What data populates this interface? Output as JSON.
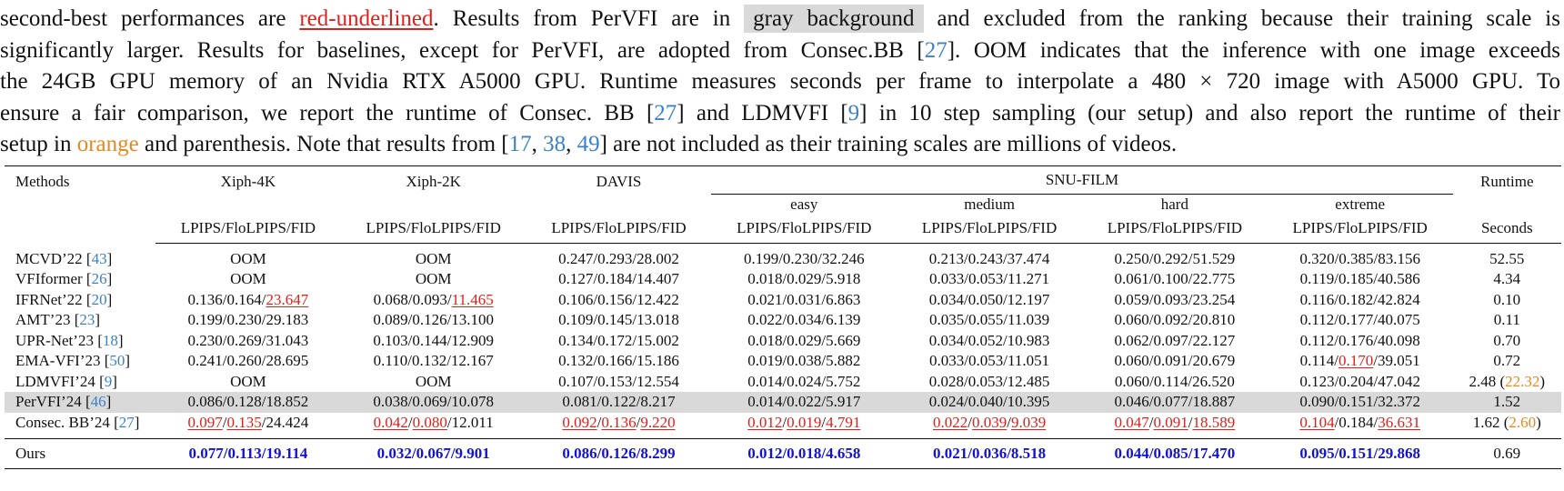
{
  "caption": {
    "l1_a": "second-best performances are ",
    "l1_red": "red-underlined",
    "l1_b": ". Results from PerVFI are in ",
    "l1_gray": "gray background",
    "l1_c": " and excluded from the ranking because their training scale is",
    "l2_a": "significantly larger. Results for baselines, except for PerVFI, are adopted from Consec.BB [",
    "l2_ref": "27",
    "l2_b": "]. OOM indicates that the inference with one image exceeds",
    "l3": "the 24GB GPU memory of an Nvidia RTX A5000 GPU. Runtime measures seconds per frame to interpolate a 480 × 720 image with A5000 GPU. To",
    "l4_a": "ensure a fair comparison, we report the runtime of Consec. BB [",
    "l4_ref1": "27",
    "l4_b": "] and LDMVFI [",
    "l4_ref2": "9",
    "l4_c": "] in 10 step sampling (our setup) and also report the runtime of their",
    "l5_a": "setup in ",
    "l5_orange": "orange",
    "l5_b": " and parenthesis. Note that results from [",
    "l5_ref1": "17",
    "l5_sep1": ", ",
    "l5_ref2": "38",
    "l5_sep2": ", ",
    "l5_ref3": "49",
    "l5_c": "] are not included as their training scales are millions of videos."
  },
  "table": {
    "methods_header": "Methods",
    "xiph4k": "Xiph-4K",
    "xiph2k": "Xiph-2K",
    "davis": "DAVIS",
    "snu": "SNU-FILM",
    "runtime": "Runtime",
    "easy": "easy",
    "medium": "medium",
    "hard": "hard",
    "extreme": "extreme",
    "metric": "LPIPS/FloLPIPS/FID",
    "seconds": "Seconds",
    "rows": [
      {
        "name": "MCVD’22 [",
        "ref": "43",
        "close": "]",
        "cells": [
          [
            {
              "t": "OOM"
            }
          ],
          [
            {
              "t": "OOM"
            }
          ],
          [
            {
              "t": "0.247/0.293/28.002"
            }
          ],
          [
            {
              "t": "0.199/0.230/32.246"
            }
          ],
          [
            {
              "t": "0.213/0.243/37.474"
            }
          ],
          [
            {
              "t": "0.250/0.292/51.529"
            }
          ],
          [
            {
              "t": "0.320/0.385/83.156"
            }
          ]
        ],
        "runtime": "52.55",
        "runtime_extra": ""
      },
      {
        "name": "VFIformer [",
        "ref": "26",
        "close": "]",
        "cells": [
          [
            {
              "t": "OOM"
            }
          ],
          [
            {
              "t": "OOM"
            }
          ],
          [
            {
              "t": "0.127/0.184/14.407"
            }
          ],
          [
            {
              "t": "0.018/0.029/5.918"
            }
          ],
          [
            {
              "t": "0.033/0.053/11.271"
            }
          ],
          [
            {
              "t": "0.061/0.100/22.775"
            }
          ],
          [
            {
              "t": "0.119/0.185/40.586"
            }
          ]
        ],
        "runtime": "4.34",
        "runtime_extra": ""
      },
      {
        "name": "IFRNet’22 [",
        "ref": "20",
        "close": "]",
        "cells": [
          [
            {
              "t": "0.136/0.164/"
            },
            {
              "t": "23.647",
              "c": "second"
            }
          ],
          [
            {
              "t": "0.068/0.093/"
            },
            {
              "t": "11.465",
              "c": "second"
            }
          ],
          [
            {
              "t": "0.106/0.156/12.422"
            }
          ],
          [
            {
              "t": "0.021/0.031/6.863"
            }
          ],
          [
            {
              "t": "0.034/0.050/12.197"
            }
          ],
          [
            {
              "t": "0.059/0.093/23.254"
            }
          ],
          [
            {
              "t": "0.116/0.182/42.824"
            }
          ]
        ],
        "runtime": "0.10",
        "runtime_extra": ""
      },
      {
        "name": "AMT’23 [",
        "ref": "23",
        "close": "]",
        "cells": [
          [
            {
              "t": "0.199/0.230/29.183"
            }
          ],
          [
            {
              "t": "0.089/0.126/13.100"
            }
          ],
          [
            {
              "t": "0.109/0.145/13.018"
            }
          ],
          [
            {
              "t": "0.022/0.034/6.139"
            }
          ],
          [
            {
              "t": "0.035/0.055/11.039"
            }
          ],
          [
            {
              "t": "0.060/0.092/20.810"
            }
          ],
          [
            {
              "t": "0.112/0.177/40.075"
            }
          ]
        ],
        "runtime": "0.11",
        "runtime_extra": ""
      },
      {
        "name": "UPR-Net’23 [",
        "ref": "18",
        "close": "]",
        "cells": [
          [
            {
              "t": "0.230/0.269/31.043"
            }
          ],
          [
            {
              "t": "0.103/0.144/12.909"
            }
          ],
          [
            {
              "t": "0.134/0.172/15.002"
            }
          ],
          [
            {
              "t": "0.018/0.029/5.669"
            }
          ],
          [
            {
              "t": "0.034/0.052/10.983"
            }
          ],
          [
            {
              "t": "0.062/0.097/22.127"
            }
          ],
          [
            {
              "t": "0.112/0.176/40.098"
            }
          ]
        ],
        "runtime": "0.70",
        "runtime_extra": ""
      },
      {
        "name": "EMA-VFI’23 [",
        "ref": "50",
        "close": "]",
        "cells": [
          [
            {
              "t": "0.241/0.260/28.695"
            }
          ],
          [
            {
              "t": "0.110/0.132/12.167"
            }
          ],
          [
            {
              "t": "0.132/0.166/15.186"
            }
          ],
          [
            {
              "t": "0.019/0.038/5.882"
            }
          ],
          [
            {
              "t": "0.033/0.053/11.051"
            }
          ],
          [
            {
              "t": "0.060/0.091/20.679"
            }
          ],
          [
            {
              "t": "0.114/"
            },
            {
              "t": "0.170",
              "c": "second"
            },
            {
              "t": "/39.051"
            }
          ]
        ],
        "runtime": "0.72",
        "runtime_extra": ""
      },
      {
        "name": "LDMVFI’24 [",
        "ref": "9",
        "close": "]",
        "cells": [
          [
            {
              "t": "OOM"
            }
          ],
          [
            {
              "t": "OOM"
            }
          ],
          [
            {
              "t": "0.107/0.153/12.554"
            }
          ],
          [
            {
              "t": "0.014/0.024/5.752"
            }
          ],
          [
            {
              "t": "0.028/0.053/12.485"
            }
          ],
          [
            {
              "t": "0.060/0.114/26.520"
            }
          ],
          [
            {
              "t": "0.123/0.204/47.042"
            }
          ]
        ],
        "runtime": "2.48 (",
        "runtime_extra": "22.32",
        "runtime_close": ")"
      },
      {
        "name": "PerVFI’24 [",
        "ref": "46",
        "close": "]",
        "gray": true,
        "cells": [
          [
            {
              "t": "0.086/0.128/18.852"
            }
          ],
          [
            {
              "t": "0.038/0.069/10.078"
            }
          ],
          [
            {
              "t": "0.081/0.122/8.217"
            }
          ],
          [
            {
              "t": "0.014/0.022/5.917"
            }
          ],
          [
            {
              "t": "0.024/0.040/10.395"
            }
          ],
          [
            {
              "t": "0.046/0.077/18.887"
            }
          ],
          [
            {
              "t": "0.090/0.151/32.372"
            }
          ]
        ],
        "runtime": "1.52",
        "runtime_extra": ""
      },
      {
        "name": "Consec. BB’24 [",
        "ref": "27",
        "close": "]",
        "cells": [
          [
            {
              "t": "0.097",
              "c": "second"
            },
            {
              "t": "/"
            },
            {
              "t": "0.135",
              "c": "second"
            },
            {
              "t": "/24.424"
            }
          ],
          [
            {
              "t": "0.042",
              "c": "second"
            },
            {
              "t": "/"
            },
            {
              "t": "0.080",
              "c": "second"
            },
            {
              "t": "/12.011"
            }
          ],
          [
            {
              "t": "0.092",
              "c": "second"
            },
            {
              "t": "/"
            },
            {
              "t": "0.136",
              "c": "second"
            },
            {
              "t": "/"
            },
            {
              "t": "9.220",
              "c": "second"
            }
          ],
          [
            {
              "t": "0.012",
              "c": "second"
            },
            {
              "t": "/"
            },
            {
              "t": "0.019",
              "c": "second"
            },
            {
              "t": "/"
            },
            {
              "t": "4.791",
              "c": "second"
            }
          ],
          [
            {
              "t": "0.022",
              "c": "second"
            },
            {
              "t": "/"
            },
            {
              "t": "0.039",
              "c": "second"
            },
            {
              "t": "/"
            },
            {
              "t": "9.039",
              "c": "second"
            }
          ],
          [
            {
              "t": "0.047",
              "c": "second"
            },
            {
              "t": "/"
            },
            {
              "t": "0.091",
              "c": "second"
            },
            {
              "t": "/"
            },
            {
              "t": "18.589",
              "c": "second"
            }
          ],
          [
            {
              "t": "0.104",
              "c": "second"
            },
            {
              "t": "/0.184/"
            },
            {
              "t": "36.631",
              "c": "second"
            }
          ]
        ],
        "runtime": "1.62 (",
        "runtime_extra": "2.60",
        "runtime_close": ")"
      }
    ],
    "ours": {
      "name": "Ours",
      "cells": [
        "0.077/0.113/19.114",
        "0.032/0.067/9.901",
        "0.086/0.126/8.299",
        "0.012/0.018/4.658",
        "0.021/0.036/8.518",
        "0.044/0.085/17.470",
        "0.095/0.151/29.868"
      ],
      "runtime": "0.69"
    }
  }
}
